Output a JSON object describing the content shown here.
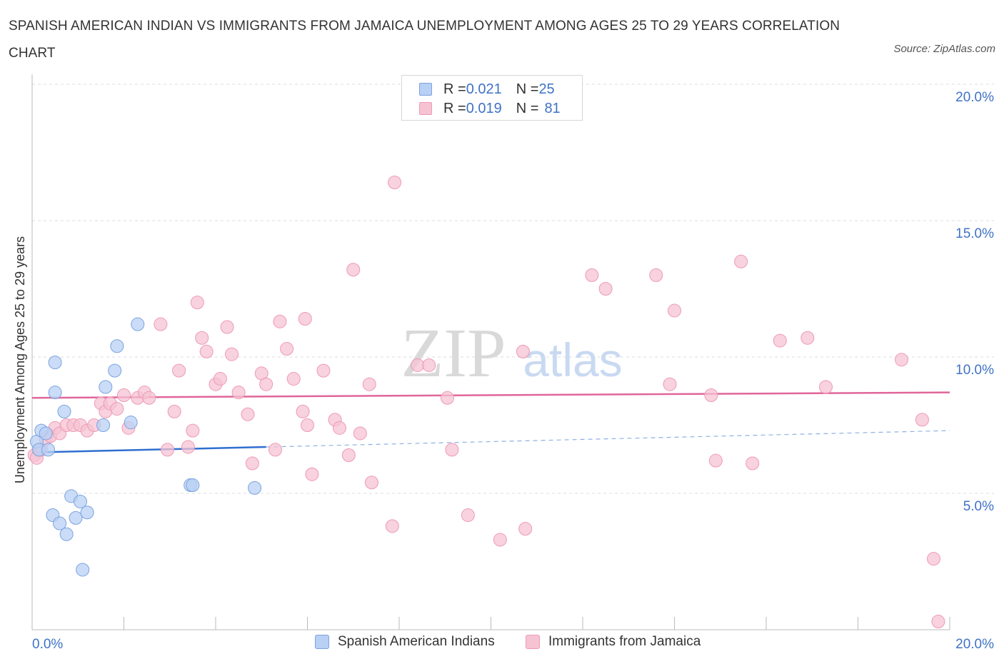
{
  "header": {
    "title": "SPANISH AMERICAN INDIAN VS IMMIGRANTS FROM JAMAICA UNEMPLOYMENT AMONG AGES 25 TO 29 YEARS CORRELATION CHART",
    "source": "Source: ZipAtlas.com"
  },
  "watermark": {
    "zip": "ZIP",
    "atlas": "atlas"
  },
  "legend": {
    "rows": [
      {
        "r_label": "R = ",
        "r_value": "0.021",
        "n_label": "N = ",
        "n_value": "25"
      },
      {
        "r_label": "R = ",
        "r_value": "0.019",
        "n_label": "N = ",
        "n_value": "81"
      }
    ]
  },
  "bottom_legend": {
    "series1": "Spanish American Indians",
    "series2": "Immigrants from Jamaica"
  },
  "colors": {
    "blue_fill": "#b8d0f4",
    "blue_stroke": "#7ba3e0",
    "blue_line": "#2f6fd0",
    "pink_fill": "#f6c3d3",
    "pink_stroke": "#ee9ab5",
    "pink_line": "#e0669a",
    "axis_label": "#3f72c6",
    "grid": "#dddddd"
  },
  "chart_data": {
    "type": "scatter",
    "title": "SPANISH AMERICAN INDIAN VS IMMIGRANTS FROM JAMAICA UNEMPLOYMENT AMONG AGES 25 TO 29 YEARS CORRELATION CHART",
    "xlabel": "",
    "ylabel": "Unemployment Among Ages 25 to 29 years",
    "xlim": [
      0,
      20
    ],
    "ylim": [
      0,
      20
    ],
    "x_tick_labels": [
      "0.0%",
      "20.0%"
    ],
    "y_ticks": [
      {
        "value": 5,
        "label": "5.0%"
      },
      {
        "value": 10,
        "label": "10.0%"
      },
      {
        "value": 15,
        "label": "15.0%"
      },
      {
        "value": 20,
        "label": "20.0%"
      }
    ],
    "grid": true,
    "series": [
      {
        "name": "Spanish American Indians",
        "r": 0.021,
        "n": 25,
        "trend": {
          "x0": 0,
          "y0": 6.5,
          "x1": 5.1,
          "y1": 6.7,
          "dash_to_x": 20,
          "dash_to_y": 7.3
        },
        "points": [
          [
            0.1,
            6.9
          ],
          [
            0.15,
            6.6
          ],
          [
            0.2,
            7.3
          ],
          [
            0.3,
            7.2
          ],
          [
            0.35,
            6.6
          ],
          [
            0.45,
            4.2
          ],
          [
            0.5,
            8.7
          ],
          [
            0.5,
            9.8
          ],
          [
            0.6,
            3.9
          ],
          [
            0.7,
            8.0
          ],
          [
            0.75,
            3.5
          ],
          [
            0.85,
            4.9
          ],
          [
            0.95,
            4.1
          ],
          [
            1.05,
            4.7
          ],
          [
            1.1,
            2.2
          ],
          [
            1.2,
            4.3
          ],
          [
            1.55,
            7.5
          ],
          [
            1.6,
            8.9
          ],
          [
            1.8,
            9.5
          ],
          [
            1.85,
            10.4
          ],
          [
            2.15,
            7.6
          ],
          [
            2.3,
            11.2
          ],
          [
            3.45,
            5.3
          ],
          [
            3.5,
            5.3
          ],
          [
            4.85,
            5.2
          ]
        ]
      },
      {
        "name": "Immigrants from Jamaica",
        "r": 0.019,
        "n": 81,
        "trend": {
          "x0": 0,
          "y0": 8.5,
          "x1": 20,
          "y1": 8.7
        },
        "points": [
          [
            0.05,
            6.4
          ],
          [
            0.1,
            6.3
          ],
          [
            0.2,
            6.6
          ],
          [
            0.3,
            7.0
          ],
          [
            0.4,
            7.1
          ],
          [
            0.5,
            7.4
          ],
          [
            0.6,
            7.2
          ],
          [
            0.75,
            7.5
          ],
          [
            0.9,
            7.5
          ],
          [
            1.05,
            7.5
          ],
          [
            1.2,
            7.3
          ],
          [
            1.35,
            7.5
          ],
          [
            1.5,
            8.3
          ],
          [
            1.6,
            8.0
          ],
          [
            1.7,
            8.3
          ],
          [
            1.85,
            8.1
          ],
          [
            2.0,
            8.6
          ],
          [
            2.1,
            7.4
          ],
          [
            2.3,
            8.5
          ],
          [
            2.45,
            8.7
          ],
          [
            2.55,
            8.5
          ],
          [
            2.8,
            11.2
          ],
          [
            2.95,
            6.6
          ],
          [
            3.1,
            8.0
          ],
          [
            3.2,
            9.5
          ],
          [
            3.4,
            6.7
          ],
          [
            3.5,
            7.3
          ],
          [
            3.6,
            12.0
          ],
          [
            3.7,
            10.7
          ],
          [
            3.8,
            10.2
          ],
          [
            4.0,
            9.0
          ],
          [
            4.1,
            9.2
          ],
          [
            4.25,
            11.1
          ],
          [
            4.35,
            10.1
          ],
          [
            4.5,
            8.7
          ],
          [
            4.7,
            7.9
          ],
          [
            4.8,
            6.1
          ],
          [
            5.0,
            9.4
          ],
          [
            5.1,
            9.0
          ],
          [
            5.3,
            6.6
          ],
          [
            5.4,
            11.3
          ],
          [
            5.55,
            10.3
          ],
          [
            5.7,
            9.2
          ],
          [
            5.9,
            8.0
          ],
          [
            5.95,
            11.4
          ],
          [
            6.0,
            7.5
          ],
          [
            6.1,
            5.7
          ],
          [
            6.35,
            9.5
          ],
          [
            6.6,
            7.7
          ],
          [
            6.7,
            7.4
          ],
          [
            6.9,
            6.4
          ],
          [
            7.0,
            13.2
          ],
          [
            7.15,
            7.2
          ],
          [
            7.35,
            9.0
          ],
          [
            7.4,
            5.4
          ],
          [
            7.85,
            3.8
          ],
          [
            7.9,
            16.4
          ],
          [
            8.4,
            9.7
          ],
          [
            8.65,
            9.7
          ],
          [
            9.05,
            8.5
          ],
          [
            9.15,
            6.6
          ],
          [
            9.5,
            4.2
          ],
          [
            10.2,
            3.3
          ],
          [
            10.7,
            10.2
          ],
          [
            10.75,
            3.7
          ],
          [
            12.2,
            13.0
          ],
          [
            12.5,
            12.5
          ],
          [
            13.6,
            13.0
          ],
          [
            13.9,
            9.0
          ],
          [
            14.0,
            11.7
          ],
          [
            14.8,
            8.6
          ],
          [
            14.9,
            6.2
          ],
          [
            15.45,
            13.5
          ],
          [
            15.7,
            6.1
          ],
          [
            16.3,
            10.6
          ],
          [
            16.9,
            10.7
          ],
          [
            17.3,
            8.9
          ],
          [
            18.95,
            9.9
          ],
          [
            19.4,
            7.7
          ],
          [
            19.65,
            2.6
          ],
          [
            19.75,
            0.3
          ]
        ]
      }
    ]
  }
}
